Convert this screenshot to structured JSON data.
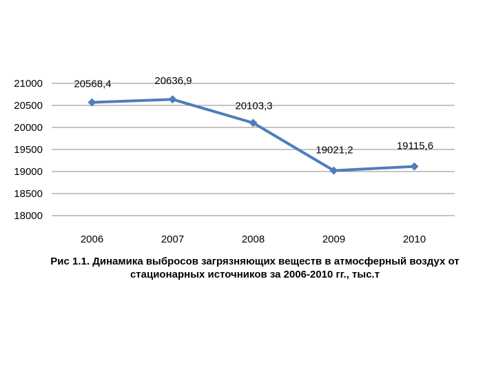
{
  "chart_data": {
    "type": "line",
    "categories": [
      "2006",
      "2007",
      "2008",
      "2009",
      "2010"
    ],
    "values": [
      20568.4,
      20636.9,
      20103.3,
      19021.2,
      19115.6
    ],
    "data_labels": [
      "20568,4",
      "20636,9",
      "20103,3",
      "19021,2",
      "19115,6"
    ],
    "y_ticks": [
      "18000",
      "18500",
      "19000",
      "19500",
      "20000",
      "20500",
      "21000"
    ],
    "ylim": [
      18000,
      21000
    ],
    "grid": true,
    "marker": "diamond",
    "line_color": "#4f7dbb"
  },
  "caption": {
    "line1": "Рис 1.1.  Динамика выбросов загрязняющих веществ в атмосферный воздух от",
    "line2": "стационарных источников за 2006-2010 гг., тыс.т"
  }
}
